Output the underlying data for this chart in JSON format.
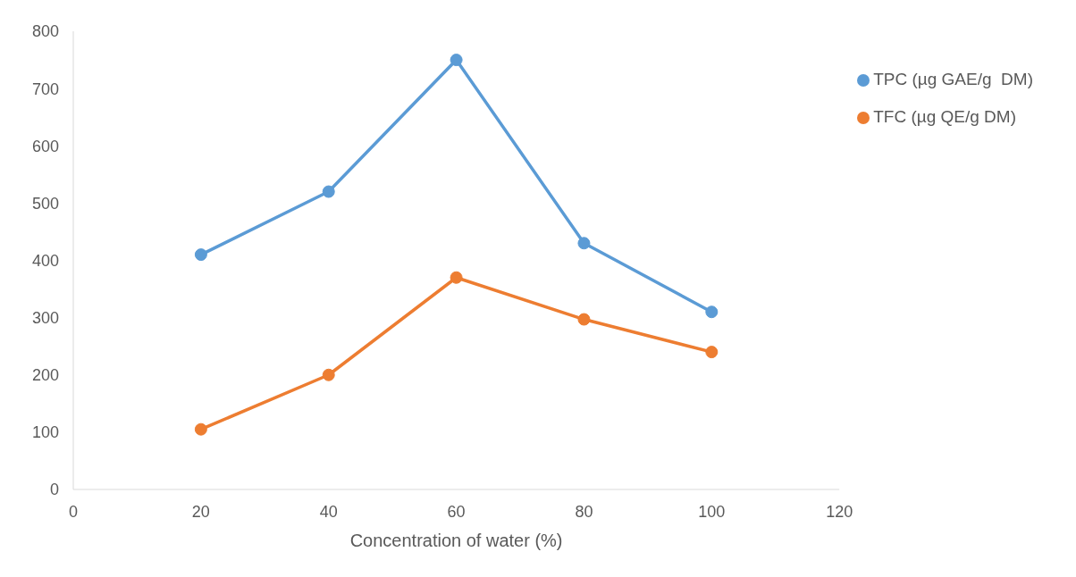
{
  "chart_data": {
    "type": "line",
    "xlabel": "Concentration of water (%)",
    "x": [
      20,
      40,
      60,
      80,
      100
    ],
    "series": [
      {
        "name": "TPC (µg GAE/g  DM)",
        "color": "#5b9bd5",
        "values": [
          410,
          520,
          750,
          430,
          310
        ]
      },
      {
        "name": "TFC (µg QE/g DM)",
        "color": "#ed7d31",
        "values": [
          105,
          200,
          370,
          297,
          240
        ]
      }
    ],
    "xlim": [
      0,
      120
    ],
    "xticks": [
      0,
      20,
      40,
      60,
      80,
      100,
      120
    ],
    "ylim": [
      0,
      800
    ],
    "yticks": [
      0,
      100,
      200,
      300,
      400,
      500,
      600,
      700,
      800
    ],
    "grid": false,
    "legend": "top right",
    "marker": "circle",
    "line_style": "solid"
  }
}
